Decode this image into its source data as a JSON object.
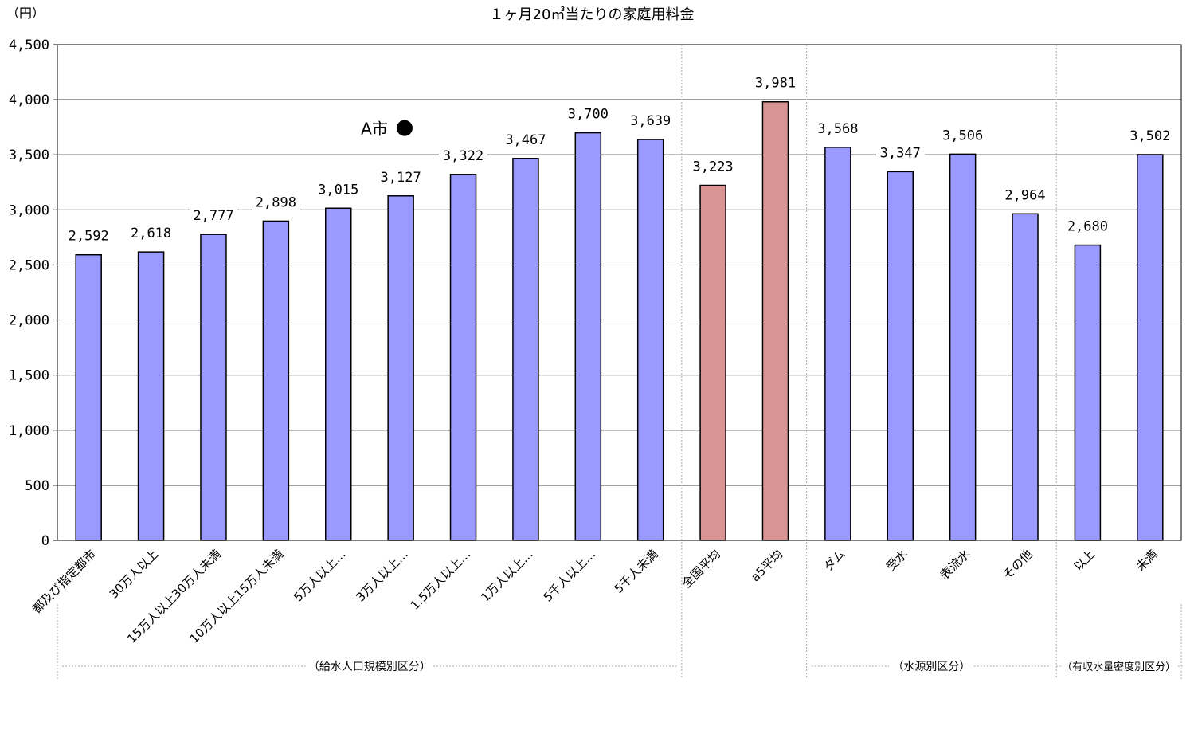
{
  "chart_data": {
    "type": "bar",
    "title": "１ヶ月20㎥当たりの家庭用料金",
    "ylabel": "（円）",
    "ylim": [
      0,
      4500
    ],
    "yticks": [
      0,
      500,
      1000,
      1500,
      2000,
      2500,
      3000,
      3500,
      4000,
      4500
    ],
    "ytick_labels": [
      "0",
      "500",
      "1,000",
      "1,500",
      "2,000",
      "2,500",
      "3,000",
      "3,500",
      "4,000",
      "4,500"
    ],
    "grid": true,
    "categories": [
      "都及び指定都市",
      "30万人以上",
      "15万人以上30万人未満",
      "10万人以上15万人未満",
      "5万人以上…",
      "3万人以上…",
      "1.5万人以上…",
      "1万人以上…",
      "5千人以上…",
      "5千人未満",
      "全国平均",
      "a5平均",
      "ダム",
      "受水",
      "表流水",
      "その他",
      "以上",
      "未満"
    ],
    "values": [
      2592,
      2618,
      2777,
      2898,
      3015,
      3127,
      3322,
      3467,
      3700,
      3639,
      3223,
      3981,
      3568,
      3347,
      3506,
      2964,
      2680,
      3502
    ],
    "value_labels": [
      "2,592",
      "2,618",
      "2,777",
      "2,898",
      "3,015",
      "3,127",
      "3,322",
      "3,467",
      "3,700",
      "3,639",
      "3,223",
      "3,981",
      "3,568",
      "3,347",
      "3,506",
      "2,964",
      "2,680",
      "3,502"
    ],
    "highlight_categories": [
      "全国平均",
      "a5平均"
    ],
    "annotations": [
      {
        "text": "A市",
        "marker": "●",
        "value": 3750
      }
    ],
    "groups": [
      {
        "label": "（給水人口規模別区分）",
        "categories": [
          "都及び指定都市",
          "30万人以上",
          "15万人以上30万人未満",
          "10万人以上15万人未満",
          "5万人以上…",
          "3万人以上…",
          "1.5万人以上…",
          "1万人以上…",
          "5千人以上…",
          "5千人未満"
        ]
      },
      {
        "label": "（水源別区分）",
        "categories": [
          "ダム",
          "受水",
          "表流水",
          "その他"
        ]
      },
      {
        "label": "（有収水量密度別区分）",
        "categories": [
          "以上",
          "未満"
        ]
      }
    ]
  },
  "colors": {
    "bar": "#9999ff",
    "highlight_bar": "#d99594",
    "bar_border": "#000000",
    "grid": "#000000",
    "separator": "#aaaaaa"
  }
}
